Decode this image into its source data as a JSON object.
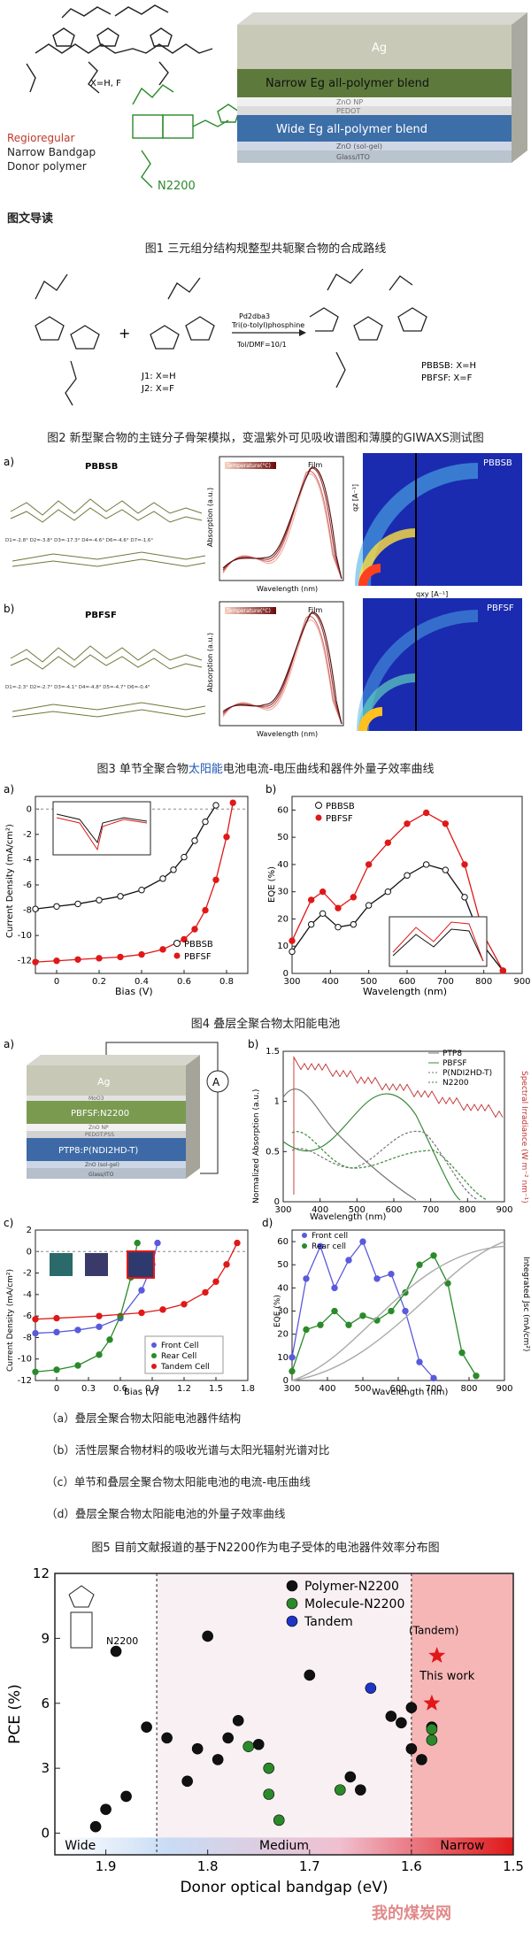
{
  "toc": {
    "heading": "图文导读",
    "fig1": "图1 三元组分结构规整型共轭聚合物的合成路线",
    "fig2": "图2 新型聚合物的主链分子骨架模拟，变温紫外可见吸收谱图和薄膜的GIWAXS测试图",
    "fig3_pre": "图3 单节全聚合物",
    "fig3_link": "太阳能",
    "fig3_post": "电池电流-电压曲线和器件外量子效率曲线",
    "fig4": "图4 叠层全聚合物太阳能电池",
    "fig5": "图5 目前文献报道的基于N2200作为电子受体的电池器件效率分布图"
  },
  "fig4_items": [
    "（a）叠层全聚合物太阳能电池器件结构",
    "（b）活性层聚合物材料的吸收光谱与太阳光辐射光谱对比",
    "（c）单节和叠层全聚合物太阳能电池的电流-电压曲线",
    "（d）叠层全聚合物太阳能电池的外量子效率曲线"
  ],
  "hero": {
    "xhf": "X=H, F",
    "regioregular": "Regioregular",
    "narrow_bandgap": "Narrow Bandgap",
    "donor_polymer": "Donor polymer",
    "n2200": "N2200",
    "layers": [
      "Ag",
      "Narrow Eg all-polymer blend",
      "ZnO NP",
      "PEDOT",
      "Wide Eg all-polymer blend",
      "ZnO (sol-gel)",
      "Glass/ITO"
    ]
  },
  "scheme": {
    "j1": "J1: X=H",
    "j2": "J2: X=F",
    "cond1": "Pd2dba3",
    "cond2": "Tri(o-tolyl)phosphine",
    "cond3": "Tol/DMF=10/1",
    "pbbsb": "PBBSB: X=H",
    "pbfsf": "PBFSF: X=F"
  },
  "fig2": {
    "a_label": "a)",
    "b_label": "b)",
    "pbbsb": "PBBSB",
    "pbfsf": "PBFSF",
    "temp_legend": "Temperature(°C)",
    "film": "Film",
    "xlabel": "Wavelength (nm)",
    "ylabel": "Absorption (a.u.)",
    "qz": "qz [A⁻¹]",
    "qxy": "qxy [A⁻¹]",
    "dihedral_a": "D1=-2.8°  D2=-3.8°  D3=-17.3°  D4=-4.6°  D6=-4.6°  D7=-1.6°",
    "dihedral_b": "D1=-2.3°  D2=-2.7°  D3=-4.1°  D4=-4.8°  D5=-4.7°  D6=-0.4°"
  },
  "fig3": {
    "a_label": "a)",
    "b_label": "b)",
    "jv_ylabel": "Current Density (mA/cm²)",
    "jv_xlabel": "Bias (V)",
    "eqe_ylabel": "EQE (%)",
    "eqe_xlabel": "Wavelength (nm)",
    "legend": [
      "PBBSB",
      "PBFSF"
    ]
  },
  "fig4": {
    "a_label": "a)",
    "b_label": "b)",
    "c_label": "c)",
    "d_label": "d)",
    "device_layers": [
      "Ag",
      "MoO3",
      "PBFSF:N2200",
      "ZnO NP",
      "PEDOT:PSS",
      "PTP8:P(NDI2HD-T)",
      "ZnO (sol-gel)",
      "Glass/ITO"
    ],
    "abs_legend": [
      "PTP8",
      "PBFSF",
      "P(NDI2HD-T)",
      "N2200"
    ],
    "abs_ylabel": "Normalized Absorption (a.u.)",
    "abs_y2label": "Spectral Irradiance (W m⁻² nm⁻¹)",
    "abs_xlabel": "Wavelength (nm)",
    "jv_legend": [
      "Front Cell",
      "Rear Cell",
      "Tandem Cell"
    ],
    "jv_ylabel": "Current Density (mA/cm²)",
    "jv_xlabel": "Bias (V)",
    "eqe_legend": [
      "Front cell",
      "Rear cell"
    ],
    "eqe_ylabel": "EQE (%)",
    "eqe_y2label": "Integrated Jsc (mA/cm²)",
    "eqe_xlabel": "Wavelength (nm)"
  },
  "chart_data": [
    {
      "type": "line",
      "title": "",
      "xlabel": "Bias (V)",
      "ylabel": "Current Density (mA/cm²)",
      "xlim": [
        -0.1,
        0.9
      ],
      "ylim": [
        -13,
        1
      ],
      "series": [
        {
          "name": "PBBSB",
          "x": [
            -0.1,
            0.0,
            0.1,
            0.2,
            0.3,
            0.4,
            0.5,
            0.55,
            0.6,
            0.65,
            0.7,
            0.75
          ],
          "y": [
            -7.9,
            -7.7,
            -7.5,
            -7.2,
            -6.9,
            -6.4,
            -5.5,
            -4.8,
            -3.8,
            -2.5,
            -1.0,
            0.3
          ]
        },
        {
          "name": "PBFSF",
          "x": [
            -0.1,
            0.0,
            0.1,
            0.2,
            0.3,
            0.4,
            0.5,
            0.6,
            0.65,
            0.7,
            0.75,
            0.8,
            0.83
          ],
          "y": [
            -12.1,
            -12.0,
            -11.9,
            -11.8,
            -11.7,
            -11.5,
            -11.1,
            -10.3,
            -9.5,
            -8.0,
            -5.6,
            -2.2,
            0.5
          ]
        }
      ]
    },
    {
      "type": "line",
      "title": "",
      "xlabel": "Wavelength (nm)",
      "ylabel": "EQE (%)",
      "xlim": [
        300,
        900
      ],
      "ylim": [
        0,
        65
      ],
      "series": [
        {
          "name": "PBBSB",
          "x": [
            300,
            350,
            380,
            420,
            460,
            500,
            550,
            600,
            650,
            700,
            750,
            800,
            850
          ],
          "y": [
            8,
            18,
            22,
            17,
            18,
            25,
            30,
            36,
            40,
            38,
            28,
            10,
            1
          ]
        },
        {
          "name": "PBFSF",
          "x": [
            300,
            350,
            380,
            420,
            460,
            500,
            550,
            600,
            650,
            700,
            750,
            800,
            850
          ],
          "y": [
            12,
            27,
            30,
            24,
            28,
            40,
            48,
            55,
            59,
            55,
            40,
            14,
            1
          ]
        }
      ]
    },
    {
      "type": "line",
      "title": "",
      "xlabel": "Bias (V)",
      "ylabel": "Current Density (mA/cm²)",
      "xlim": [
        -0.2,
        1.8
      ],
      "ylim": [
        -12,
        2
      ],
      "series": [
        {
          "name": "Front Cell",
          "x": [
            -0.2,
            0.0,
            0.2,
            0.4,
            0.6,
            0.8,
            0.9,
            0.95
          ],
          "y": [
            -7.6,
            -7.5,
            -7.3,
            -7.0,
            -6.2,
            -3.6,
            -1.2,
            0.8
          ]
        },
        {
          "name": "Rear Cell",
          "x": [
            -0.2,
            0.0,
            0.2,
            0.4,
            0.5,
            0.6,
            0.7,
            0.76
          ],
          "y": [
            -11.2,
            -11.0,
            -10.6,
            -9.6,
            -8.2,
            -6.0,
            -2.4,
            0.8
          ]
        },
        {
          "name": "Tandem Cell",
          "x": [
            -0.2,
            0.0,
            0.4,
            0.8,
            1.0,
            1.2,
            1.4,
            1.5,
            1.6,
            1.7
          ],
          "y": [
            -6.3,
            -6.2,
            -6.0,
            -5.7,
            -5.4,
            -4.9,
            -3.8,
            -2.8,
            -1.2,
            0.8
          ]
        }
      ]
    },
    {
      "type": "scatter",
      "title": "",
      "xlabel": "Donor optical bandgap (eV)",
      "ylabel": "PCE (%)",
      "xlim": [
        1.95,
        1.5
      ],
      "ylim": [
        -1,
        12
      ],
      "regions": [
        "Wide",
        "Medium",
        "Narrow"
      ],
      "annotations": [
        "(Tandem)",
        "This work"
      ],
      "inset_label": "N2200",
      "series": [
        {
          "name": "Polymer-N2200",
          "color": "#111111",
          "x": [
            1.91,
            1.9,
            1.89,
            1.88,
            1.86,
            1.84,
            1.82,
            1.81,
            1.8,
            1.79,
            1.78,
            1.77,
            1.75,
            1.7,
            1.66,
            1.65,
            1.62,
            1.61,
            1.6,
            1.6,
            1.59,
            1.58
          ],
          "y": [
            0.3,
            1.1,
            8.4,
            1.7,
            4.9,
            4.4,
            2.4,
            3.9,
            9.1,
            3.4,
            4.4,
            5.2,
            4.1,
            7.3,
            2.6,
            2.0,
            5.4,
            5.1,
            5.8,
            3.9,
            3.4,
            4.9
          ]
        },
        {
          "name": "Molecule-N2200",
          "color": "#2a8a2a",
          "x": [
            1.76,
            1.74,
            1.74,
            1.73,
            1.67,
            1.58,
            1.58
          ],
          "y": [
            4.0,
            3.0,
            1.8,
            0.6,
            2.0,
            4.3,
            4.8
          ]
        },
        {
          "name": "Tandem",
          "color": "#1f35c8",
          "x": [
            1.64
          ],
          "y": [
            6.7
          ]
        },
        {
          "name": "This work",
          "color": "#e01818",
          "x": [
            1.575,
            1.58
          ],
          "y": [
            8.2,
            6.0
          ]
        }
      ]
    }
  ]
}
